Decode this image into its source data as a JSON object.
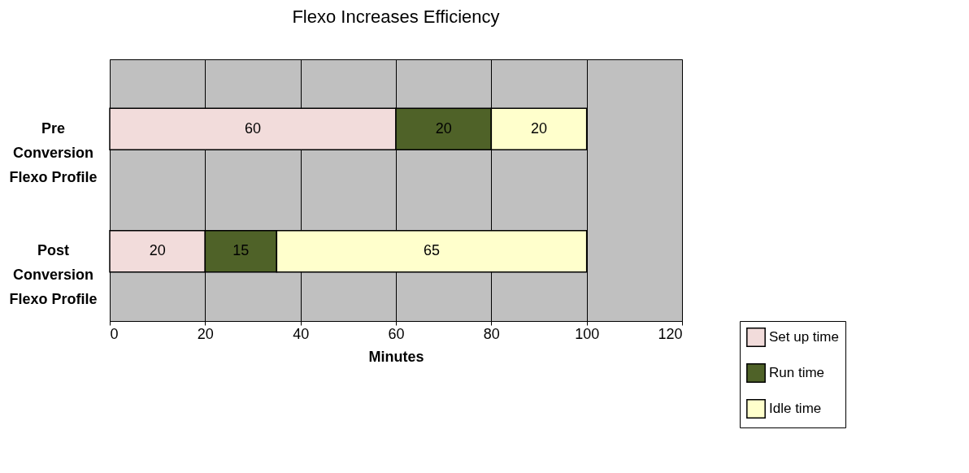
{
  "chart_data": {
    "type": "bar",
    "orientation": "horizontal",
    "stacked": true,
    "title": "Flexo Increases Efficiency",
    "xlabel": "Minutes",
    "categories": [
      "Pre Conversion Flexo Profile",
      "Post Conversion Flexo Profile"
    ],
    "series": [
      {
        "name": "Set up time",
        "color": "#f2dcdb",
        "values": [
          60,
          20
        ]
      },
      {
        "name": "Run time",
        "color": "#4f6228",
        "values": [
          20,
          15
        ]
      },
      {
        "name": "Idle time",
        "color": "#ffffcc",
        "values": [
          20,
          65
        ]
      }
    ],
    "xlim": [
      0,
      120
    ],
    "xticks": [
      0,
      20,
      40,
      60,
      80,
      100,
      120
    ],
    "grid": "x",
    "legend": "bottom right",
    "data_labels": true
  }
}
